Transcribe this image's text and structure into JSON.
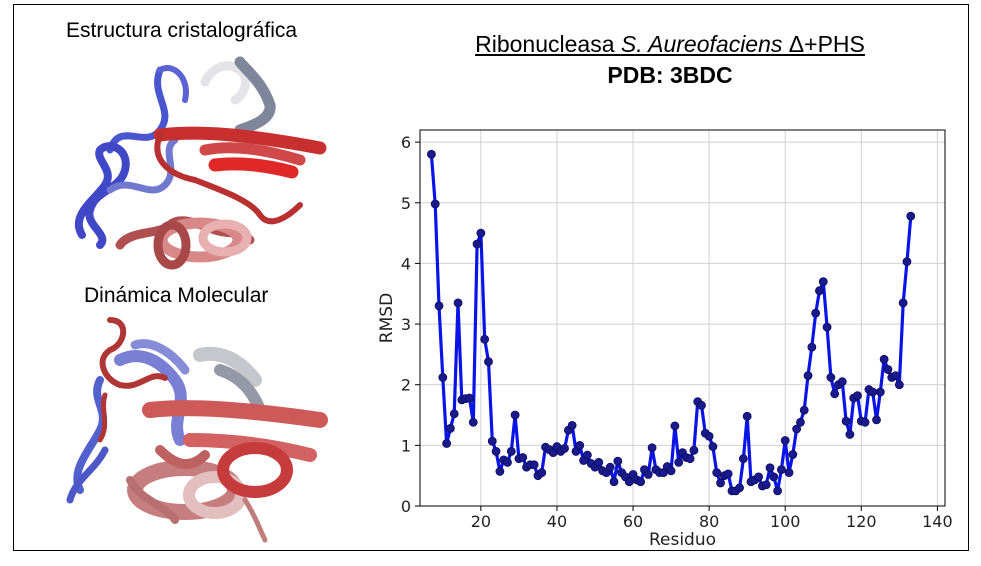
{
  "labels": {
    "crystal": "Estructura cristalográfica",
    "md": "Dinámica Molecular"
  },
  "chart_data": {
    "type": "line",
    "title_prefix": "Ribonucleasa ",
    "title_italic": "S. Aureofaciens",
    "title_suffix": " Δ+PHS",
    "subtitle": "PDB: 3BDC",
    "xlabel": "Residuo",
    "ylabel": "RMSD",
    "xlim": [
      4,
      142
    ],
    "ylim": [
      0,
      6.2
    ],
    "xticks": [
      20,
      40,
      60,
      80,
      100,
      120,
      140
    ],
    "yticks": [
      0,
      1,
      2,
      3,
      4,
      5,
      6
    ],
    "grid": true,
    "series": [
      {
        "color": "#0a14e6",
        "marker_color": "#1a1a8c",
        "points": [
          [
            7,
            5.8
          ],
          [
            8,
            4.98
          ],
          [
            9,
            3.3
          ],
          [
            10,
            2.12
          ],
          [
            11,
            1.03
          ],
          [
            12,
            1.28
          ],
          [
            13,
            1.52
          ],
          [
            14,
            3.35
          ],
          [
            15,
            1.75
          ],
          [
            16,
            1.77
          ],
          [
            17,
            1.78
          ],
          [
            18,
            1.38
          ],
          [
            19,
            4.32
          ],
          [
            20,
            4.5
          ],
          [
            21,
            2.75
          ],
          [
            22,
            2.38
          ],
          [
            23,
            1.07
          ],
          [
            24,
            0.9
          ],
          [
            25,
            0.57
          ],
          [
            26,
            0.76
          ],
          [
            27,
            0.72
          ],
          [
            28,
            0.9
          ],
          [
            29,
            1.5
          ],
          [
            30,
            0.78
          ],
          [
            31,
            0.8
          ],
          [
            32,
            0.64
          ],
          [
            33,
            0.68
          ],
          [
            34,
            0.68
          ],
          [
            35,
            0.5
          ],
          [
            36,
            0.55
          ],
          [
            37,
            0.97
          ],
          [
            38,
            0.93
          ],
          [
            39,
            0.88
          ],
          [
            40,
            0.98
          ],
          [
            41,
            0.9
          ],
          [
            42,
            0.95
          ],
          [
            43,
            1.25
          ],
          [
            44,
            1.33
          ],
          [
            45,
            0.9
          ],
          [
            46,
            1.0
          ],
          [
            47,
            0.75
          ],
          [
            48,
            0.84
          ],
          [
            49,
            0.7
          ],
          [
            50,
            0.64
          ],
          [
            51,
            0.72
          ],
          [
            52,
            0.58
          ],
          [
            53,
            0.55
          ],
          [
            54,
            0.64
          ],
          [
            55,
            0.4
          ],
          [
            56,
            0.74
          ],
          [
            57,
            0.55
          ],
          [
            58,
            0.48
          ],
          [
            59,
            0.4
          ],
          [
            60,
            0.52
          ],
          [
            61,
            0.43
          ],
          [
            62,
            0.4
          ],
          [
            63,
            0.6
          ],
          [
            64,
            0.52
          ],
          [
            65,
            0.96
          ],
          [
            66,
            0.6
          ],
          [
            67,
            0.55
          ],
          [
            68,
            0.55
          ],
          [
            69,
            0.65
          ],
          [
            70,
            0.58
          ],
          [
            71,
            1.32
          ],
          [
            72,
            0.72
          ],
          [
            73,
            0.88
          ],
          [
            74,
            0.8
          ],
          [
            75,
            0.78
          ],
          [
            76,
            0.92
          ],
          [
            77,
            1.72
          ],
          [
            78,
            1.66
          ],
          [
            79,
            1.2
          ],
          [
            80,
            1.15
          ],
          [
            81,
            0.98
          ],
          [
            82,
            0.55
          ],
          [
            83,
            0.38
          ],
          [
            84,
            0.5
          ],
          [
            85,
            0.53
          ],
          [
            86,
            0.25
          ],
          [
            87,
            0.25
          ],
          [
            88,
            0.3
          ],
          [
            89,
            0.78
          ],
          [
            90,
            1.48
          ],
          [
            91,
            0.4
          ],
          [
            92,
            0.43
          ],
          [
            93,
            0.48
          ],
          [
            94,
            0.33
          ],
          [
            95,
            0.35
          ],
          [
            96,
            0.63
          ],
          [
            97,
            0.48
          ],
          [
            98,
            0.25
          ],
          [
            99,
            0.6
          ],
          [
            100,
            1.08
          ],
          [
            101,
            0.55
          ],
          [
            102,
            0.85
          ],
          [
            103,
            1.27
          ],
          [
            104,
            1.38
          ],
          [
            105,
            1.58
          ],
          [
            106,
            2.15
          ],
          [
            107,
            2.62
          ],
          [
            108,
            3.18
          ],
          [
            109,
            3.55
          ],
          [
            110,
            3.7
          ],
          [
            111,
            2.95
          ],
          [
            112,
            2.12
          ],
          [
            113,
            1.85
          ],
          [
            114,
            2.0
          ],
          [
            115,
            2.05
          ],
          [
            116,
            1.4
          ],
          [
            117,
            1.18
          ],
          [
            118,
            1.78
          ],
          [
            119,
            1.82
          ],
          [
            120,
            1.4
          ],
          [
            121,
            1.38
          ],
          [
            122,
            1.92
          ],
          [
            123,
            1.88
          ],
          [
            124,
            1.42
          ],
          [
            125,
            1.88
          ],
          [
            126,
            2.42
          ],
          [
            127,
            2.25
          ],
          [
            128,
            2.12
          ],
          [
            129,
            2.15
          ],
          [
            130,
            2.0
          ],
          [
            131,
            3.35
          ],
          [
            132,
            4.03
          ],
          [
            133,
            4.78
          ]
        ]
      }
    ]
  }
}
